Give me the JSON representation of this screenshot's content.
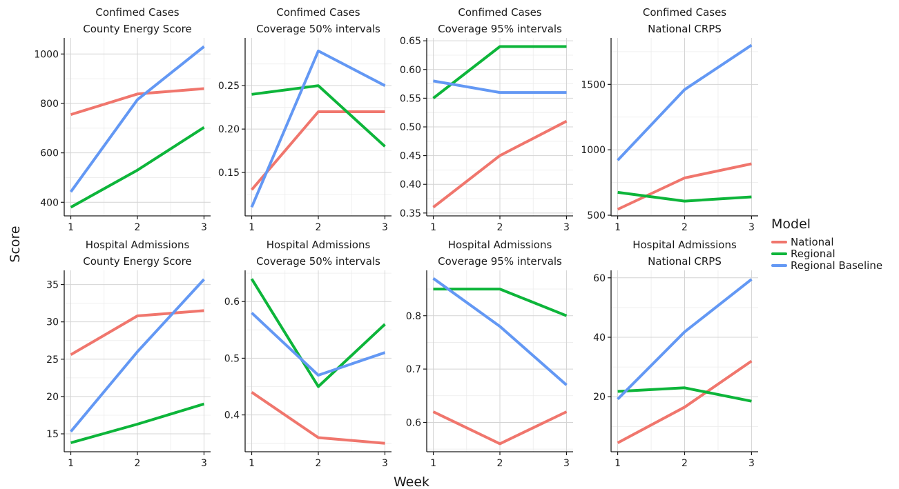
{
  "figure": {
    "ylabel": "Score",
    "xlabel": "Week",
    "legend": {
      "title": "Model",
      "position": "right",
      "items": [
        {
          "name": "National",
          "color": "#F0766D"
        },
        {
          "name": "Regional",
          "color": "#0DB53A"
        },
        {
          "name": "Regional Baseline",
          "color": "#6398F4"
        }
      ]
    }
  },
  "chart_data": [
    {
      "type": "line",
      "title": "Confimed Cases",
      "subtitle": "County Energy Score",
      "x": [
        1,
        2,
        3
      ],
      "xticks": [
        1,
        2,
        3
      ],
      "ylim": [
        345,
        1065
      ],
      "yticks": [
        400,
        600,
        800,
        1000
      ],
      "ytick_labels": [
        "400",
        "600",
        "800",
        "1000"
      ],
      "grid": true,
      "series": [
        {
          "name": "National",
          "values": [
            755,
            838,
            860
          ]
        },
        {
          "name": "Regional",
          "values": [
            380,
            530,
            703
          ]
        },
        {
          "name": "Regional Baseline",
          "values": [
            442,
            815,
            1030
          ]
        }
      ]
    },
    {
      "type": "line",
      "title": "Confimed Cases",
      "subtitle": "Coverage 50% intervals",
      "x": [
        1,
        2,
        3
      ],
      "xticks": [
        1,
        2,
        3
      ],
      "ylim": [
        0.1,
        0.305
      ],
      "yticks": [
        0.15,
        0.2,
        0.25
      ],
      "ytick_labels": [
        "0.15",
        "0.20",
        "0.25"
      ],
      "grid": true,
      "series": [
        {
          "name": "National",
          "values": [
            0.13,
            0.22,
            0.22
          ]
        },
        {
          "name": "Regional",
          "values": [
            0.24,
            0.25,
            0.18
          ]
        },
        {
          "name": "Regional Baseline",
          "values": [
            0.11,
            0.29,
            0.25
          ]
        }
      ]
    },
    {
      "type": "line",
      "title": "Confimed Cases",
      "subtitle": "Coverage 95% intervals",
      "x": [
        1,
        2,
        3
      ],
      "xticks": [
        1,
        2,
        3
      ],
      "ylim": [
        0.345,
        0.655
      ],
      "yticks": [
        0.35,
        0.4,
        0.45,
        0.5,
        0.55,
        0.6,
        0.65
      ],
      "ytick_labels": [
        "0.35",
        "0.40",
        "0.45",
        "0.50",
        "0.55",
        "0.60",
        "0.65"
      ],
      "grid": true,
      "series": [
        {
          "name": "National",
          "values": [
            0.36,
            0.45,
            0.51
          ]
        },
        {
          "name": "Regional",
          "values": [
            0.55,
            0.64,
            0.64
          ]
        },
        {
          "name": "Regional Baseline",
          "values": [
            0.58,
            0.56,
            0.56
          ]
        }
      ]
    },
    {
      "type": "line",
      "title": "Confimed Cases",
      "subtitle": "National CRPS",
      "x": [
        1,
        2,
        3
      ],
      "xticks": [
        1,
        2,
        3
      ],
      "ylim": [
        495,
        1855
      ],
      "yticks": [
        500,
        1000,
        1500
      ],
      "ytick_labels": [
        "500",
        "1000",
        "1500"
      ],
      "grid": true,
      "series": [
        {
          "name": "National",
          "values": [
            545,
            785,
            893
          ]
        },
        {
          "name": "Regional",
          "values": [
            675,
            608,
            640
          ]
        },
        {
          "name": "Regional Baseline",
          "values": [
            920,
            1460,
            1800
          ]
        }
      ]
    },
    {
      "type": "line",
      "title": "Hospital Admissions",
      "subtitle": "County Energy Score",
      "x": [
        1,
        2,
        3
      ],
      "xticks": [
        1,
        2,
        3
      ],
      "ylim": [
        12.6,
        36.9
      ],
      "yticks": [
        15,
        20,
        25,
        30,
        35
      ],
      "ytick_labels": [
        "15",
        "20",
        "25",
        "30",
        "35"
      ],
      "grid": true,
      "series": [
        {
          "name": "National",
          "values": [
            25.6,
            30.8,
            31.5
          ]
        },
        {
          "name": "Regional",
          "values": [
            13.8,
            16.3,
            19.0
          ]
        },
        {
          "name": "Regional Baseline",
          "values": [
            15.3,
            26.0,
            35.7
          ]
        }
      ]
    },
    {
      "type": "line",
      "title": "Hospital Admissions",
      "subtitle": "Coverage 50% intervals",
      "x": [
        1,
        2,
        3
      ],
      "xticks": [
        1,
        2,
        3
      ],
      "ylim": [
        0.335,
        0.655
      ],
      "yticks": [
        0.4,
        0.5,
        0.6
      ],
      "ytick_labels": [
        "0.4",
        "0.5",
        "0.6"
      ],
      "grid": true,
      "series": [
        {
          "name": "National",
          "values": [
            0.44,
            0.36,
            0.35
          ]
        },
        {
          "name": "Regional",
          "values": [
            0.64,
            0.45,
            0.56
          ]
        },
        {
          "name": "Regional Baseline",
          "values": [
            0.58,
            0.47,
            0.51
          ]
        }
      ]
    },
    {
      "type": "line",
      "title": "Hospital Admissions",
      "subtitle": "Coverage 95% intervals",
      "x": [
        1,
        2,
        3
      ],
      "xticks": [
        1,
        2,
        3
      ],
      "ylim": [
        0.545,
        0.885
      ],
      "yticks": [
        0.6,
        0.7,
        0.8
      ],
      "ytick_labels": [
        "0.6",
        "0.7",
        "0.8"
      ],
      "grid": true,
      "series": [
        {
          "name": "National",
          "values": [
            0.62,
            0.56,
            0.62
          ]
        },
        {
          "name": "Regional",
          "values": [
            0.85,
            0.85,
            0.8
          ]
        },
        {
          "name": "Regional Baseline",
          "values": [
            0.87,
            0.78,
            0.67
          ]
        }
      ]
    },
    {
      "type": "line",
      "title": "Hospital Admissions",
      "subtitle": "National CRPS",
      "x": [
        1,
        2,
        3
      ],
      "xticks": [
        1,
        2,
        3
      ],
      "ylim": [
        1.5,
        62.5
      ],
      "yticks": [
        20,
        40,
        60
      ],
      "ytick_labels": [
        "20",
        "40",
        "60"
      ],
      "grid": true,
      "series": [
        {
          "name": "National",
          "values": [
            4.5,
            16.5,
            32.0
          ]
        },
        {
          "name": "Regional",
          "values": [
            21.8,
            23.0,
            18.5
          ]
        },
        {
          "name": "Regional Baseline",
          "values": [
            19.2,
            41.8,
            59.5
          ]
        }
      ]
    }
  ]
}
